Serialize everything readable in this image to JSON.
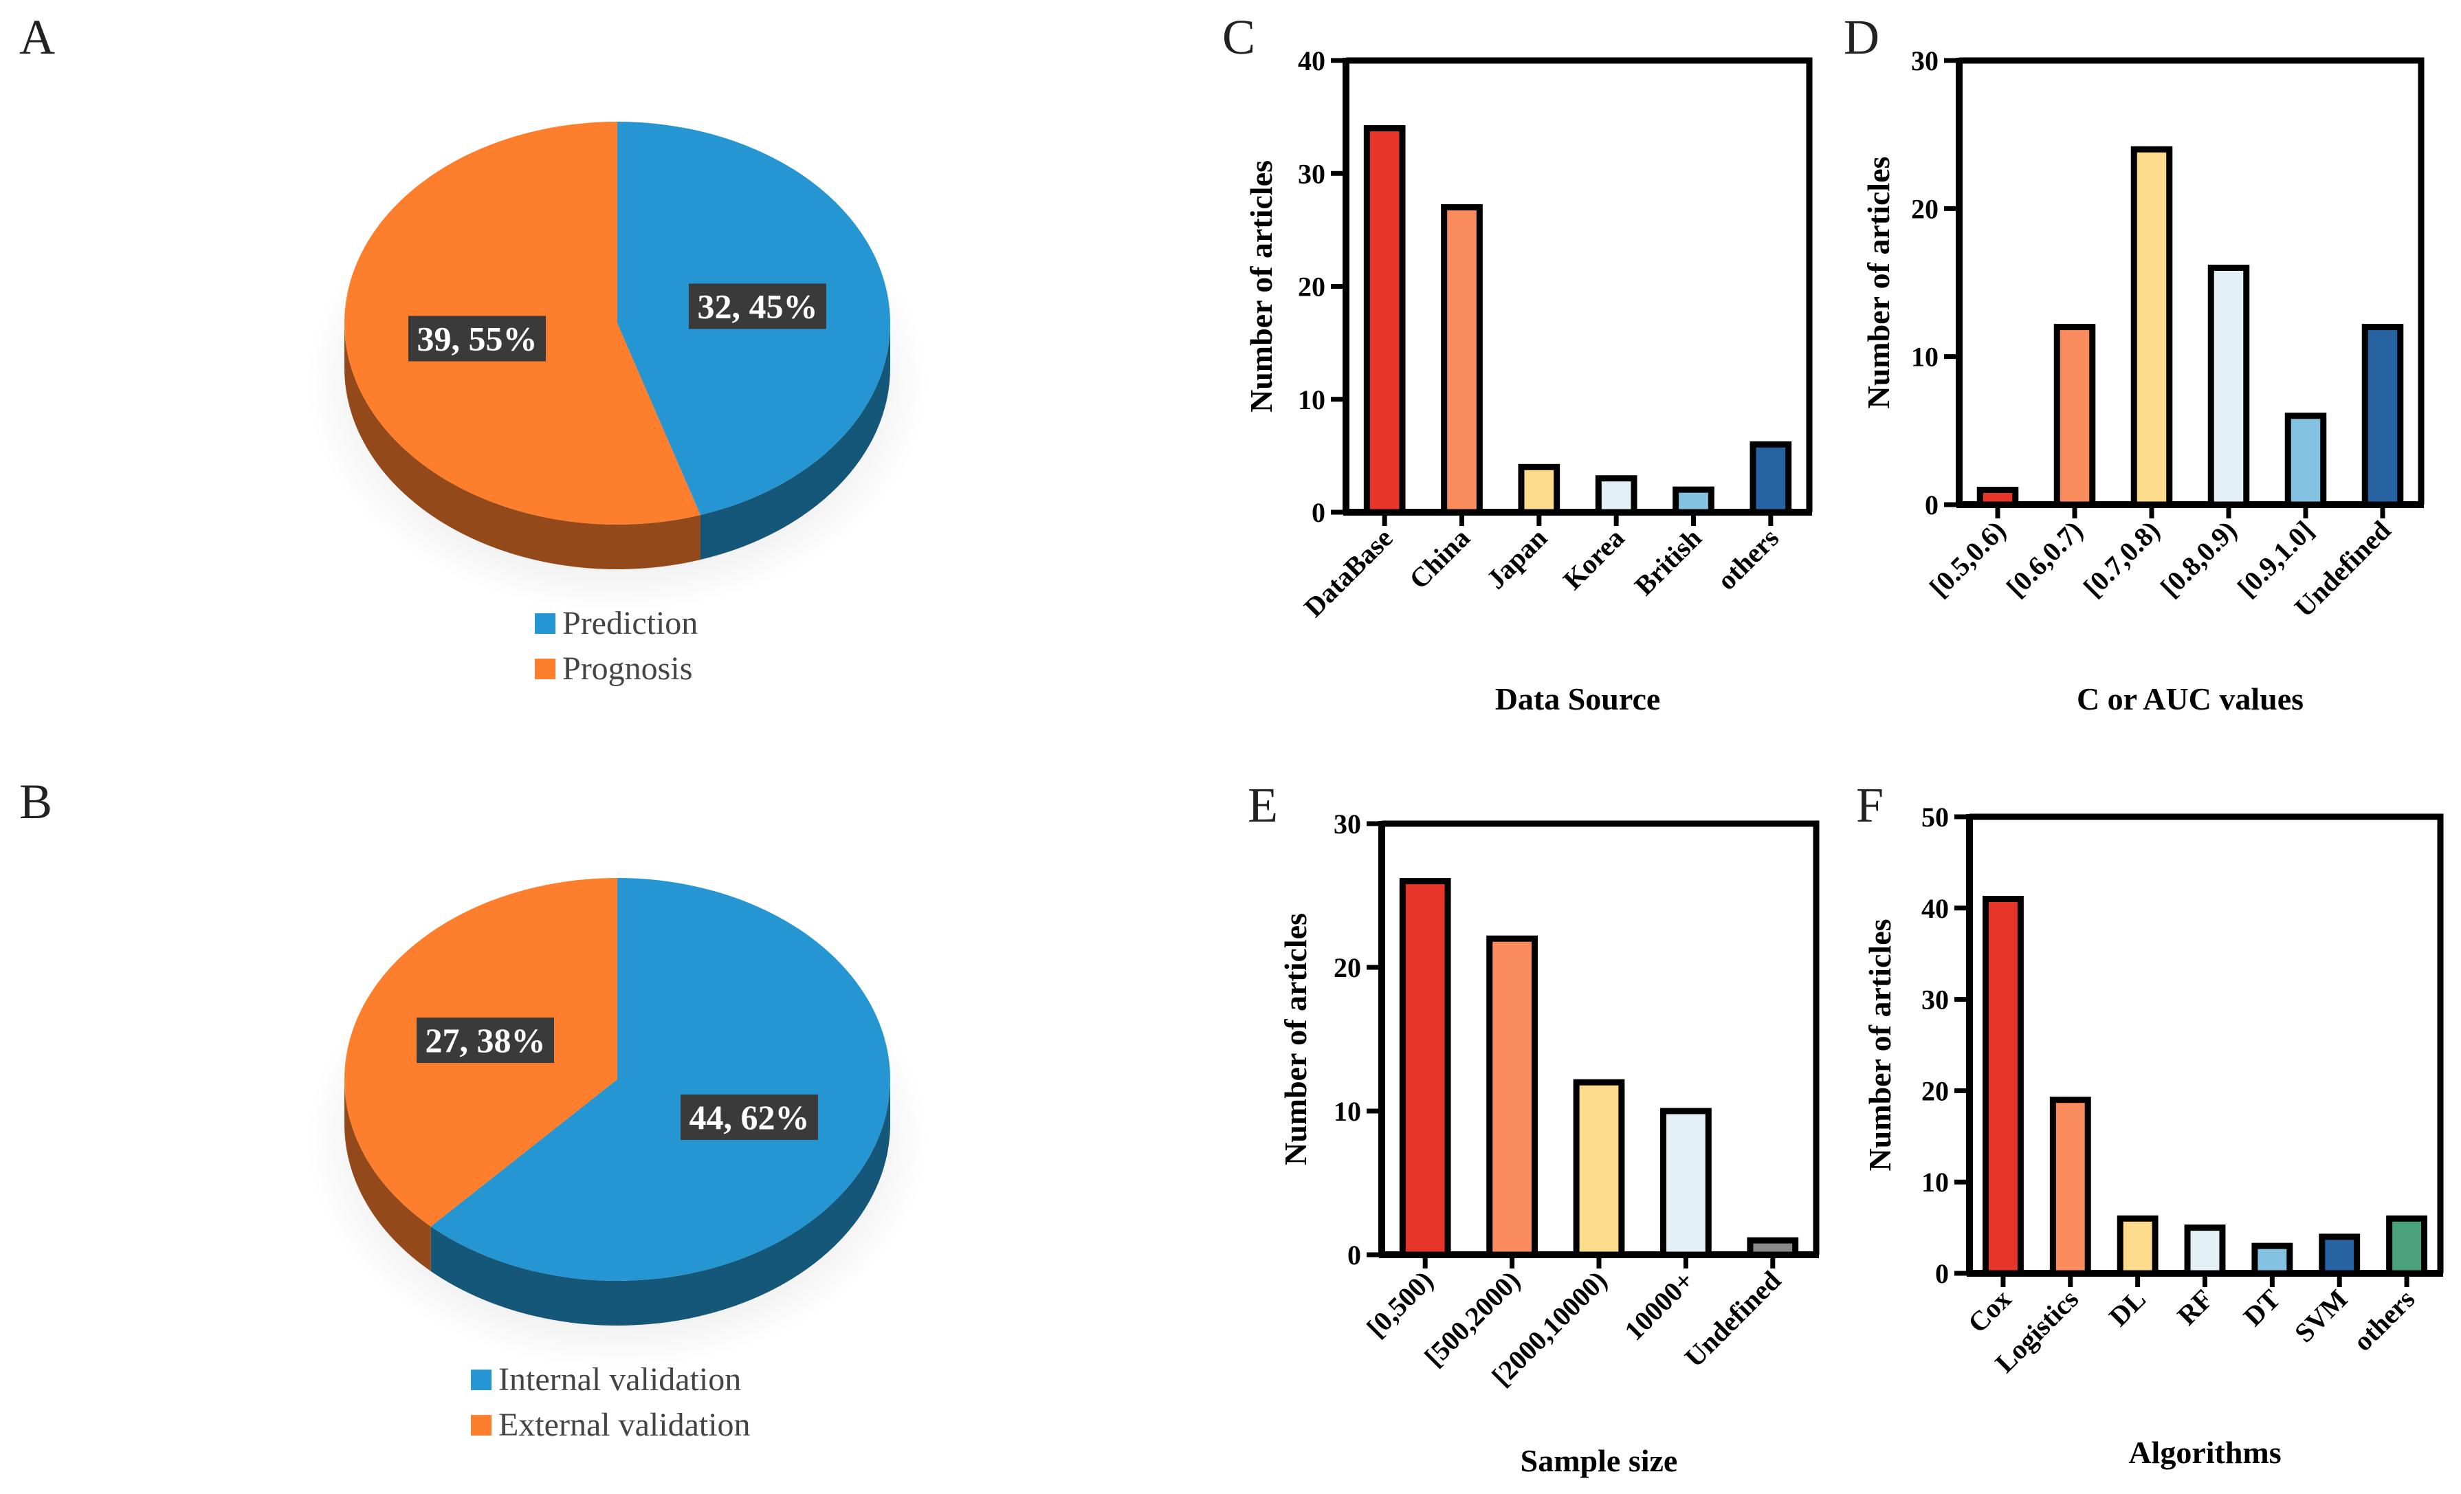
{
  "chart_data": [
    {
      "panel": "A",
      "type": "pie",
      "slices": [
        {
          "name": "Prediction",
          "value": 32,
          "percent": 45,
          "color": "#2596d1",
          "label": "32, 45%"
        },
        {
          "name": "Prognosis",
          "value": 39,
          "percent": 55,
          "color": "#fd7e2c",
          "label": "39, 55%"
        }
      ],
      "legend": [
        "Prediction",
        "Prognosis"
      ]
    },
    {
      "panel": "B",
      "type": "pie",
      "slices": [
        {
          "name": "Internal validation",
          "value": 44,
          "percent": 62,
          "color": "#2596d1",
          "label": "44, 62%"
        },
        {
          "name": "External validation",
          "value": 27,
          "percent": 38,
          "color": "#fd7e2c",
          "label": "27, 38%"
        }
      ],
      "legend": [
        "Internal validation",
        "External validation"
      ]
    },
    {
      "panel": "C",
      "type": "bar",
      "categories": [
        "DataBase",
        "China",
        "Japan",
        "Korea",
        "British",
        "others"
      ],
      "values": [
        34,
        27,
        4,
        3,
        2,
        6
      ],
      "colors": [
        "#e8352a",
        "#f98b5c",
        "#fcdb8c",
        "#e3f1f7",
        "#84c2e2",
        "#2762a3"
      ],
      "ylim": [
        0,
        40
      ],
      "yticks": [
        0,
        10,
        20,
        30,
        40
      ],
      "xlabel": "Data Source",
      "ylabel": "Number of articles"
    },
    {
      "panel": "D",
      "type": "bar",
      "categories": [
        "[0.5,0.6)",
        "[0.6,0.7)",
        "[0.7,0.8)",
        "[0.8,0.9)",
        "[0.9,1.0]",
        "Undefined"
      ],
      "values": [
        1,
        12,
        24,
        16,
        6,
        12
      ],
      "colors": [
        "#e8352a",
        "#f98b5c",
        "#fcdb8c",
        "#e3f1f7",
        "#84c2e2",
        "#2762a3"
      ],
      "ylim": [
        0,
        30
      ],
      "yticks": [
        0,
        10,
        20,
        30
      ],
      "xlabel": "C or AUC values",
      "ylabel": "Number of articles"
    },
    {
      "panel": "E",
      "type": "bar",
      "categories": [
        "[0,500)",
        "[500,2000)",
        "[2000,10000)",
        "10000+",
        "Undefined"
      ],
      "values": [
        26,
        22,
        12,
        10,
        1
      ],
      "colors": [
        "#e8352a",
        "#f98b5c",
        "#fcdb8c",
        "#e3f1f7",
        "#8a8a8a"
      ],
      "ylim": [
        0,
        30
      ],
      "yticks": [
        0,
        10,
        20,
        30
      ],
      "xlabel": "Sample size",
      "ylabel": "Number of articles"
    },
    {
      "panel": "F",
      "type": "bar",
      "categories": [
        "Cox",
        "Logistics",
        "DL",
        "RF",
        "DT",
        "SVM",
        "others"
      ],
      "values": [
        41,
        19,
        6,
        5,
        3,
        4,
        6
      ],
      "colors": [
        "#e8352a",
        "#f98b5c",
        "#fcdb8c",
        "#e3f1f7",
        "#84c2e2",
        "#2762a3",
        "#4aa27a"
      ],
      "ylim": [
        0,
        50
      ],
      "yticks": [
        0,
        10,
        20,
        30,
        40,
        50
      ],
      "xlabel": "Algorithms",
      "ylabel": "Number of articles"
    }
  ]
}
